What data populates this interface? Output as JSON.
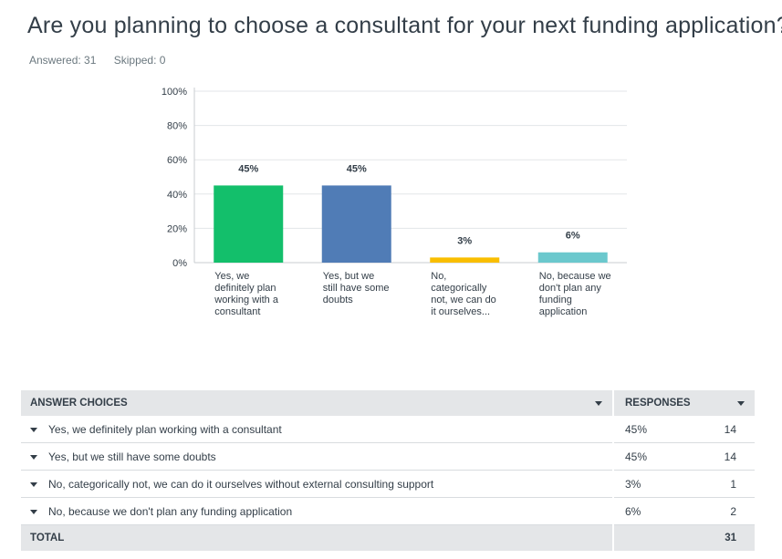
{
  "survey": {
    "question": "Are you planning to choose a consultant for your next funding application?",
    "answered": "Answered: 31",
    "skipped": "Skipped: 0"
  },
  "chart_data": {
    "type": "bar",
    "categories": [
      "Yes, we definitely plan working with a consultant",
      "Yes, but we still have some doubts",
      "No, categorically not, we can do it ourselves...",
      "No, because we don't plan any funding application"
    ],
    "category_lines": [
      [
        "Yes, we",
        "definitely plan",
        "working with a",
        "consultant"
      ],
      [
        "Yes, but we",
        "still have some",
        "doubts"
      ],
      [
        "No,",
        "categorically",
        "not, we can do",
        "it ourselves..."
      ],
      [
        "No, because we",
        "don't plan any",
        "funding",
        "application"
      ]
    ],
    "values": [
      45,
      45,
      3,
      6
    ],
    "value_labels": [
      "45%",
      "45%",
      "3%",
      "6%"
    ],
    "colors": [
      "#13bf6b",
      "#507cb6",
      "#f9be00",
      "#6bc8cd"
    ],
    "yticks": [
      "0%",
      "20%",
      "40%",
      "60%",
      "80%",
      "100%"
    ],
    "ylim": [
      0,
      100
    ],
    "grid": true
  },
  "table": {
    "header_choice": "ANSWER CHOICES",
    "header_responses": "RESPONSES",
    "rows": [
      {
        "choice": "Yes, we definitely plan working with a consultant",
        "pct": "45%",
        "count": "14"
      },
      {
        "choice": "Yes, but we still have some doubts",
        "pct": "45%",
        "count": "14"
      },
      {
        "choice": "No, categorically not, we can do it ourselves without external consulting support",
        "pct": "3%",
        "count": "1"
      },
      {
        "choice": "No, because we don't plan any funding application",
        "pct": "6%",
        "count": "2"
      }
    ],
    "total_label": "TOTAL",
    "total_count": "31"
  }
}
